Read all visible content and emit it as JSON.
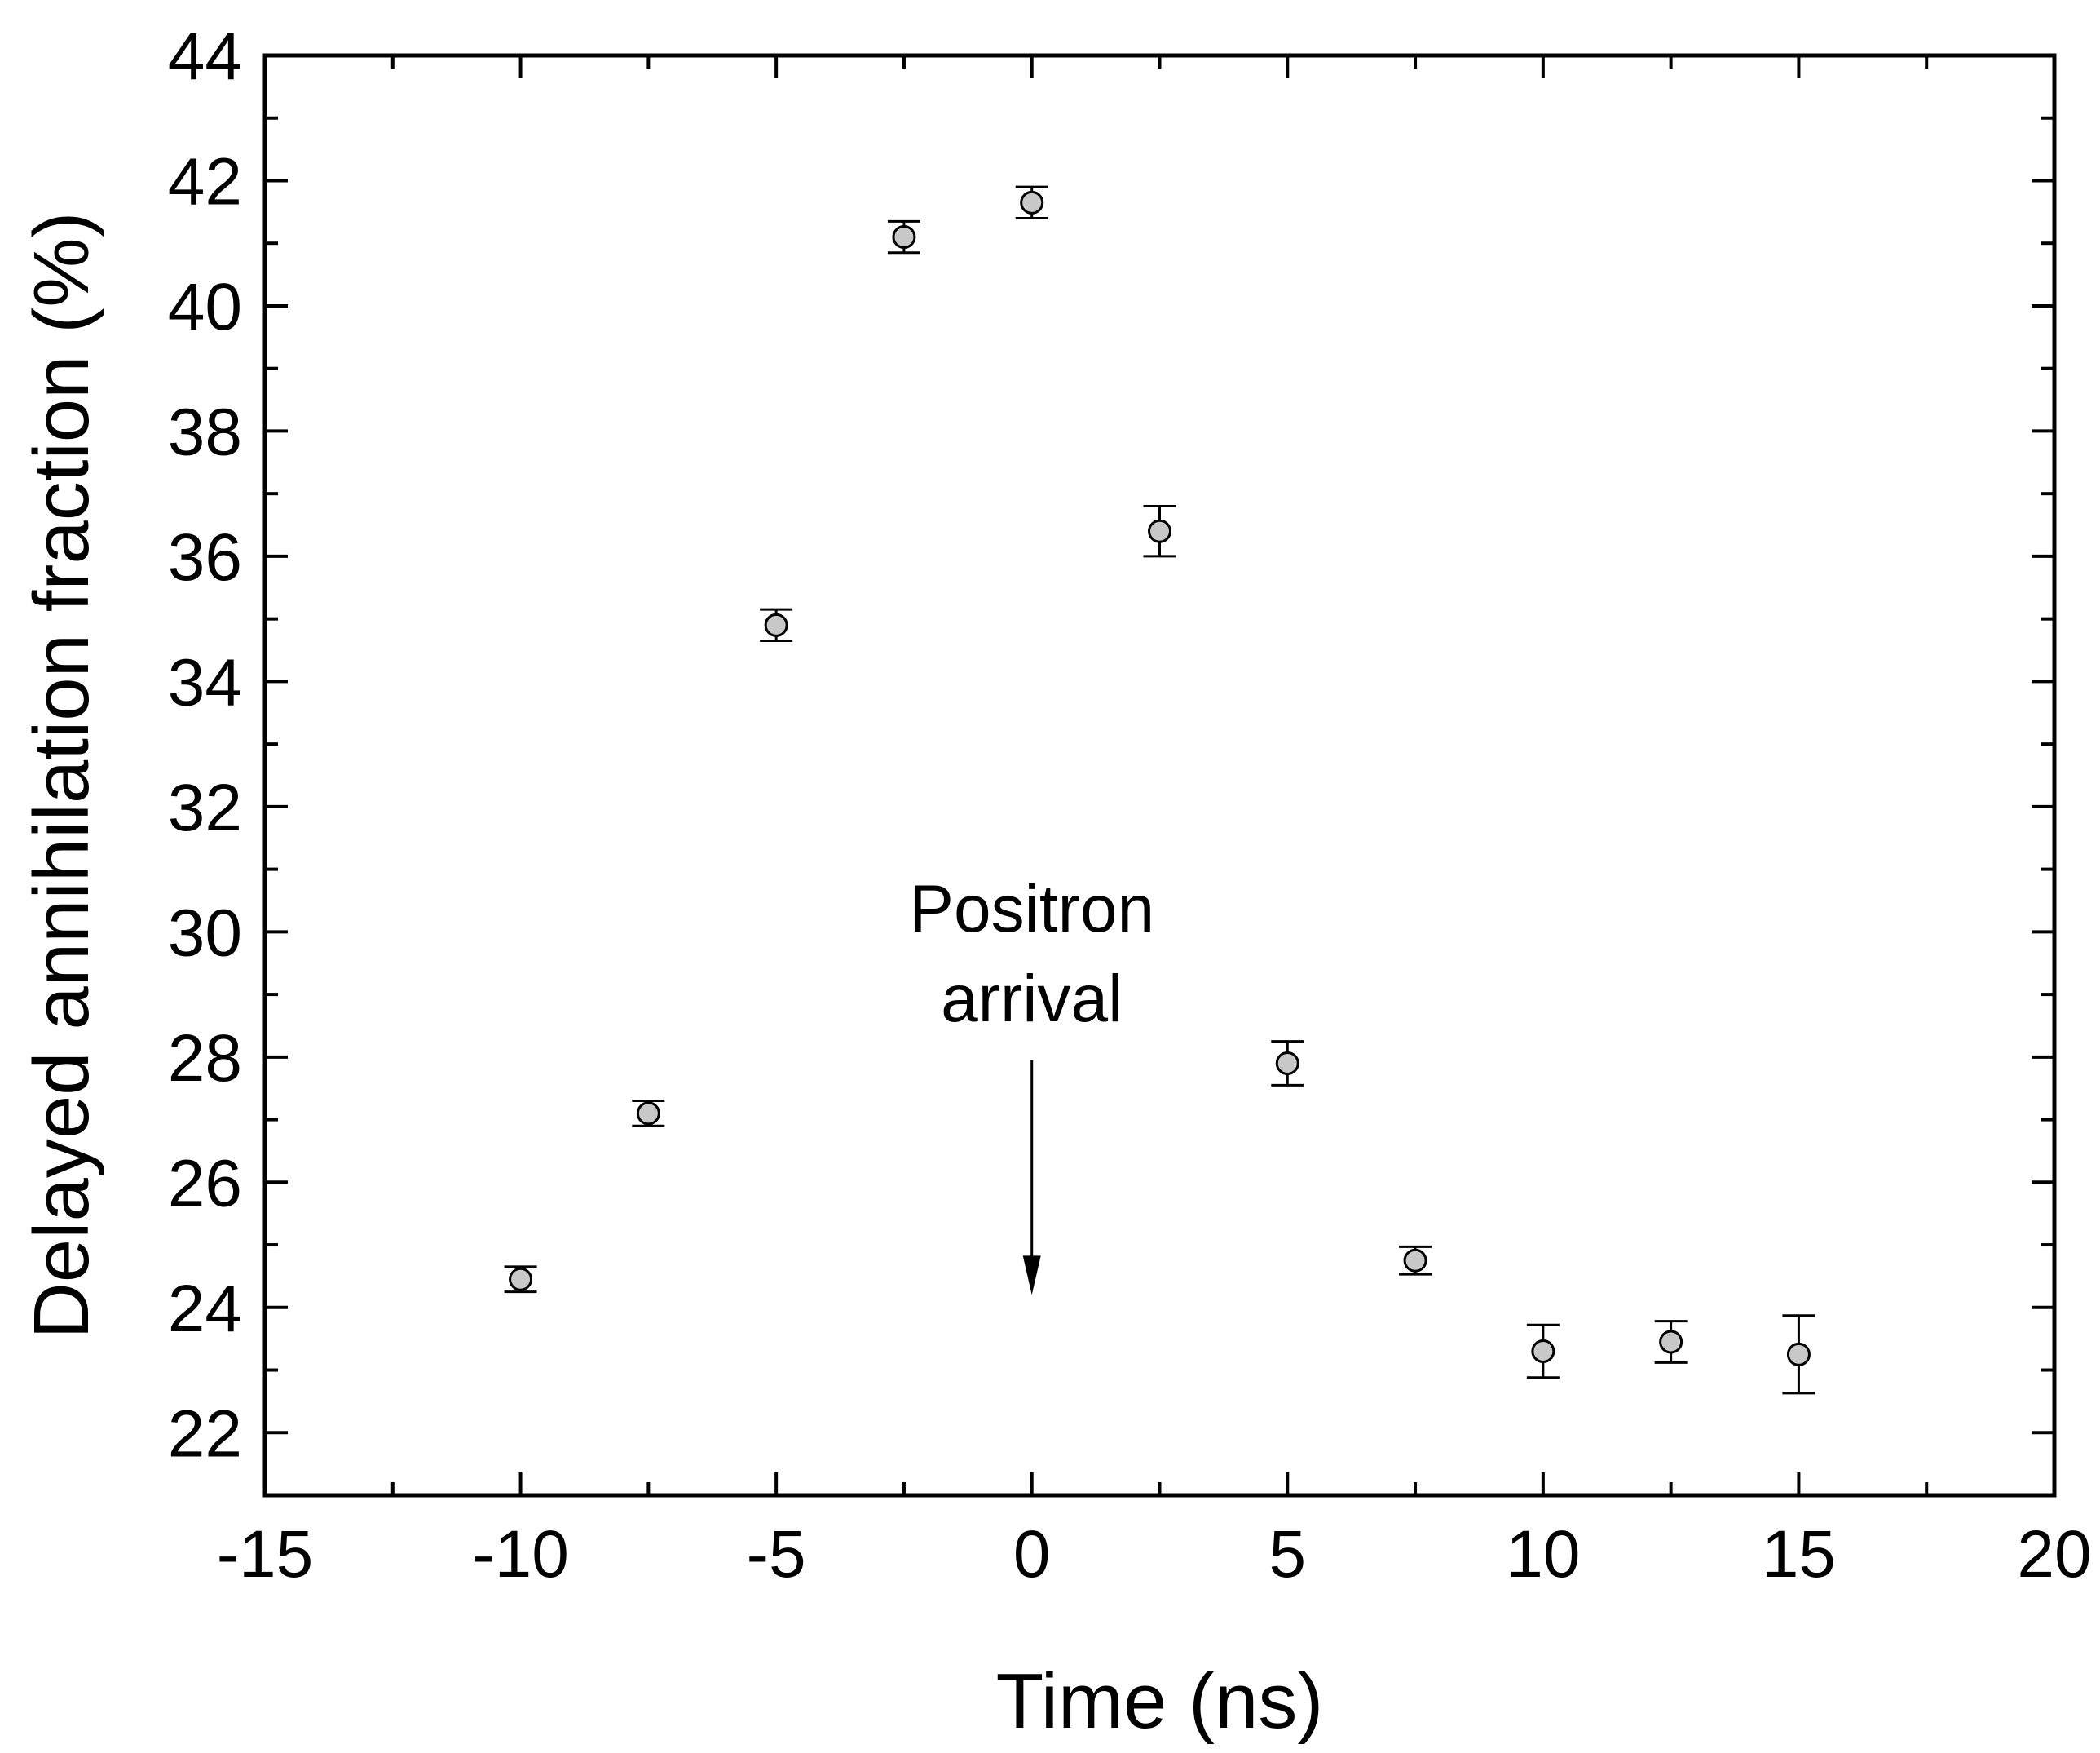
{
  "chart_data": {
    "type": "scatter",
    "title": "",
    "xlabel": "Time (ns)",
    "ylabel": "Delayed annihilation fraction (%)",
    "xlim": [
      -15,
      20
    ],
    "ylim": [
      21,
      44
    ],
    "xticks": [
      -15,
      -10,
      -5,
      0,
      5,
      10,
      15,
      20
    ],
    "xtick_labels": [
      "-15",
      "-10",
      "-5",
      "0",
      "5",
      "10",
      "15",
      "20"
    ],
    "yticks": [
      22,
      24,
      26,
      28,
      30,
      32,
      34,
      36,
      38,
      40,
      42,
      44
    ],
    "ytick_labels": [
      "22",
      "24",
      "26",
      "28",
      "30",
      "32",
      "34",
      "36",
      "38",
      "40",
      "42",
      "44"
    ],
    "x_minor_step": 2.5,
    "y_minor_step": 1,
    "grid": false,
    "legend": "none",
    "marker_color": "#c8c8c8",
    "points": [
      {
        "x": -10,
        "y": 24.45,
        "err": 0.2
      },
      {
        "x": -7.5,
        "y": 27.1,
        "err": 0.2
      },
      {
        "x": -5,
        "y": 34.9,
        "err": 0.25
      },
      {
        "x": -2.5,
        "y": 41.1,
        "err": 0.25
      },
      {
        "x": 0,
        "y": 41.65,
        "err": 0.25
      },
      {
        "x": 2.5,
        "y": 36.4,
        "err": 0.4
      },
      {
        "x": 5,
        "y": 27.9,
        "err": 0.35
      },
      {
        "x": 7.5,
        "y": 24.75,
        "err": 0.22
      },
      {
        "x": 10,
        "y": 23.3,
        "err": 0.42
      },
      {
        "x": 12.5,
        "y": 23.45,
        "err": 0.33
      },
      {
        "x": 15,
        "y": 23.25,
        "err": 0.62
      }
    ],
    "annotation": {
      "lines": [
        "Positron",
        "arrival"
      ],
      "x": 0,
      "arrow_from_y": 28,
      "arrow_to_y": 24.2
    }
  }
}
